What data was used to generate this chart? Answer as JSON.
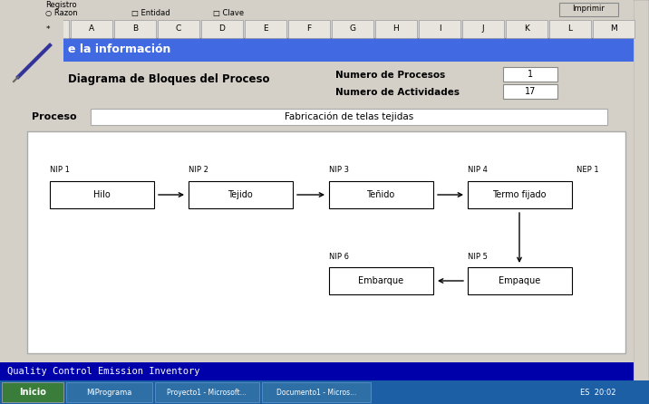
{
  "bg_color": "#c0c0c0",
  "win_bg": "#d4d0c8",
  "header_blue": "#4169e1",
  "status_blue": "#0000aa",
  "taskbar_blue": "#1c5fa5",
  "inicio_green": "#3a7d3a",
  "header_text": "e la información",
  "tab_letters": [
    "*",
    "A",
    "B",
    "C",
    "D",
    "E",
    "F",
    "G",
    "H",
    "I",
    "J",
    "K",
    "L",
    "M"
  ],
  "diagram_title": "Diagrama de Bloques del Proceso",
  "num_procesos_label": "Numero de Procesos",
  "num_actividades_label": "Numero de Actividades",
  "num_procesos_val": "1",
  "num_actividades_val": "17",
  "proceso_label": "Proceso",
  "proceso_val": "Fabricación de telas tejidas",
  "bottom_bar_text": "Quality Control Emission Inventory",
  "imprimir_label": "Imprimir",
  "razon_label": "○ Razon",
  "entidad_label": "□ Entidad",
  "clave_label": "□ Clave",
  "registro_label": "Registro",
  "boxes": [
    {
      "label": "Hilo",
      "nip": "NIP 1",
      "nep": "",
      "col": 0
    },
    {
      "label": "Tejido",
      "nip": "NIP 2",
      "nep": "",
      "col": 1
    },
    {
      "label": "Teñido",
      "nip": "NIP 3",
      "nep": "",
      "col": 2
    },
    {
      "label": "Termo fijado",
      "nip": "NIP 4",
      "nep": "NEP 1",
      "col": 3
    },
    {
      "label": "Empaque",
      "nip": "NIP 5",
      "nep": "",
      "col": 3,
      "row": 1
    },
    {
      "label": "Embarque",
      "nip": "NIP 6",
      "nep": "",
      "col": 2,
      "row": 1
    }
  ]
}
